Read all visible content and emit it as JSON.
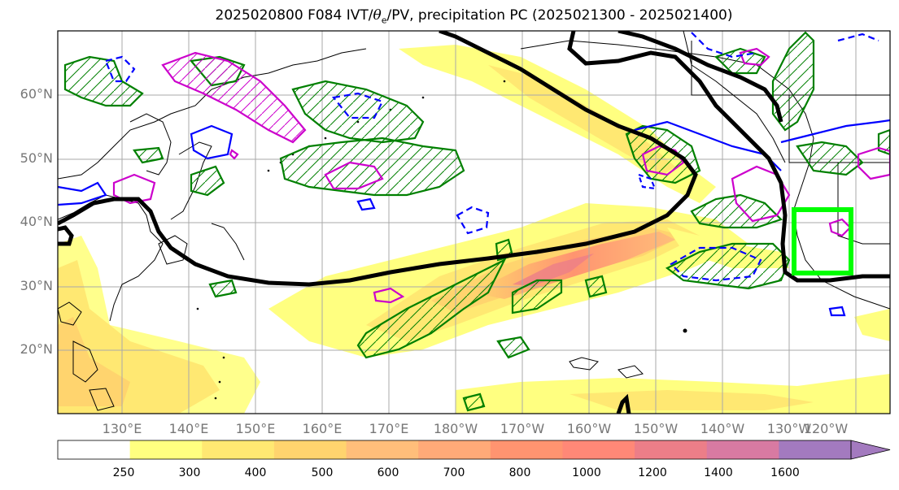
{
  "title_prefix": "2025020800 F084 IVT/",
  "title_theta": "θ",
  "title_sub": "e",
  "title_suffix": "/PV, precipitation PC (2025021300 - 2025021400)",
  "lat_labels": [
    "60°N",
    "50°N",
    "40°N",
    "30°N",
    "20°N"
  ],
  "lon_labels": [
    "130°E",
    "140°E",
    "150°E",
    "160°E",
    "170°E",
    "180°W",
    "170°W",
    "160°W",
    "150°W",
    "140°W",
    "130°W",
    "120°W"
  ],
  "colorbar": {
    "ticks": [
      "250",
      "300",
      "400",
      "500",
      "600",
      "700",
      "800",
      "1000",
      "1200",
      "1400",
      "1600"
    ],
    "colors": [
      "#ffffff",
      "#ffff80",
      "#ffe872",
      "#ffd46e",
      "#ffbe7a",
      "#ffaa78",
      "#ff9470",
      "#ff8877",
      "#ec7e88",
      "#d87aa2",
      "#a37abf"
    ]
  },
  "colors": {
    "precip_contour": "#008000",
    "pv_positive": "#0000ff",
    "pv_negative": "#cc00cc",
    "theta_e_contour": "#000000",
    "highlight_box": "#00ff00"
  }
}
